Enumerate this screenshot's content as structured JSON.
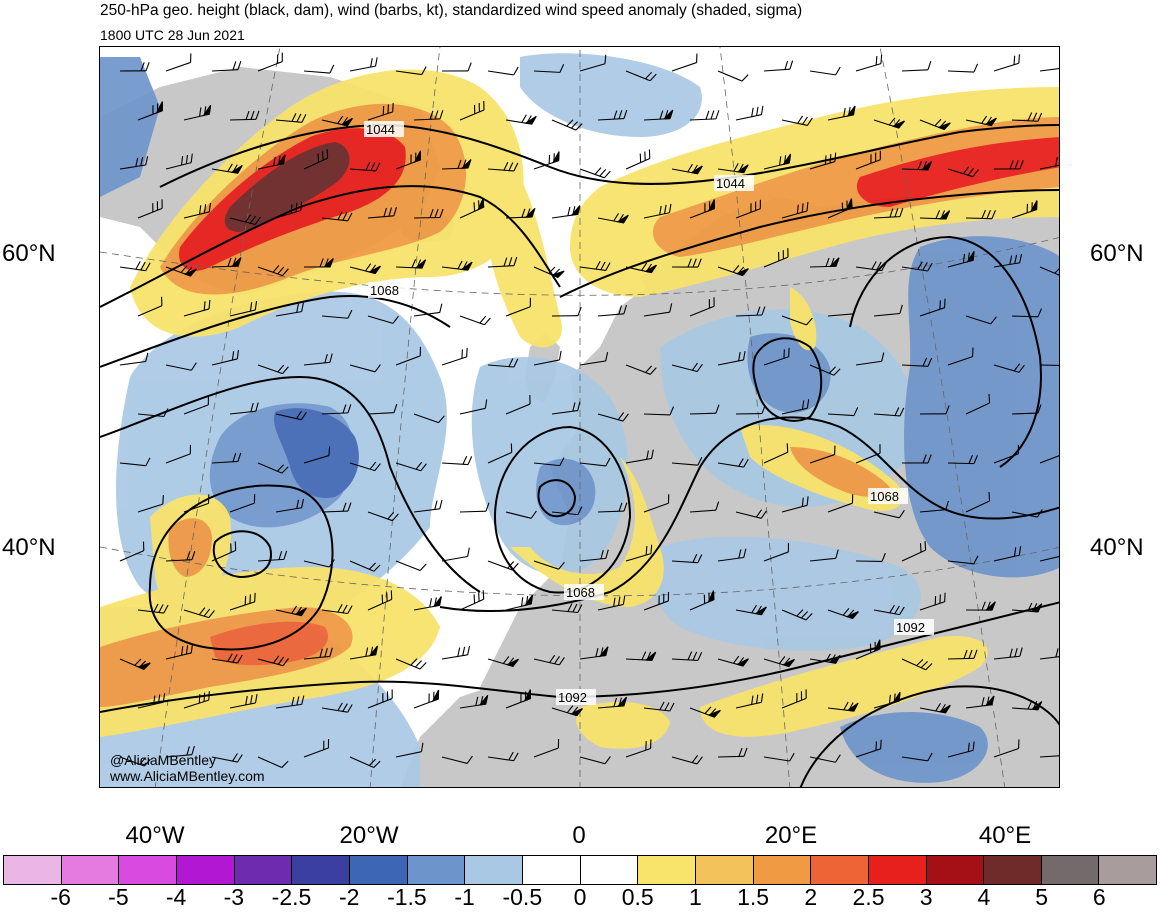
{
  "header": {
    "title": "250-hPa geo. height (black, dam), wind (barbs, kt), standardized wind speed anomaly (shaded, sigma)",
    "valid_time": "1800 UTC 28 Jun 2021"
  },
  "map": {
    "region": "North Atlantic and Europe",
    "lat_labels": [
      "60°N",
      "40°N"
    ],
    "lon_labels": [
      "40°W",
      "20°W",
      "0",
      "20°E",
      "40°E"
    ],
    "contour_labels": [
      "1044",
      "1044",
      "1068",
      "1068",
      "1068",
      "1092",
      "1092"
    ],
    "features": {
      "ocean_fill": "#ffffff",
      "land_fill": "#c8c8c8",
      "contour_color": "#000000",
      "coastline_color": "#555555"
    }
  },
  "credits": {
    "handle": "@AliciaMBentley",
    "website": "www.AliciaMBentley.com"
  },
  "colorbar": {
    "colors": [
      "#e9b6e6",
      "#e57ae0",
      "#d94be0",
      "#b218d2",
      "#6f2bb0",
      "#3a3fa0",
      "#3d66b4",
      "#6e95cb",
      "#a9c8e4",
      "#ffffff",
      "#ffffff",
      "#f8e36b",
      "#f3c25b",
      "#f09a44",
      "#ef6437",
      "#e8201d",
      "#a50f16",
      "#6f2a2a",
      "#736b6b",
      "#a89c9c"
    ],
    "tick_labels": [
      "-6",
      "-5",
      "-4",
      "-3",
      "-2.5",
      "-2",
      "-1.5",
      "-1",
      "-0.5",
      "0",
      "0.5",
      "1",
      "1.5",
      "2",
      "2.5",
      "3",
      "4",
      "5",
      "6"
    ]
  }
}
